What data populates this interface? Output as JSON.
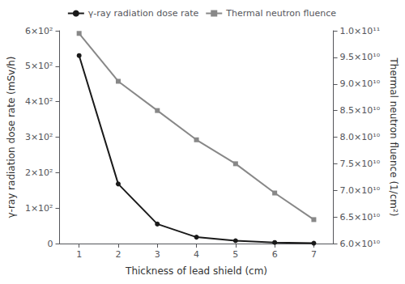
{
  "chart_data": {
    "type": "line",
    "xlabel": "Thickness of lead shield (cm)",
    "ylabel": "γ-ray radiation dose rate (mSv/h)",
    "y2label": "Thermal neutron fluence (1/cm²)",
    "x": [
      1,
      2,
      3,
      4,
      5,
      6,
      7
    ],
    "xlim": [
      0.5,
      7.5
    ],
    "xticks": [
      1,
      2,
      3,
      4,
      5,
      6,
      7
    ],
    "ylim": [
      0,
      600
    ],
    "yticks": [
      0,
      {
        "value": 100,
        "label": "1×10²"
      },
      {
        "value": 200,
        "label": "2×10²"
      },
      {
        "value": 300,
        "label": "3×10²"
      },
      {
        "value": 400,
        "label": "4×10²"
      },
      {
        "value": 500,
        "label": "5×10²"
      },
      {
        "value": 600,
        "label": "6×10²"
      }
    ],
    "y2lim": [
      60000000000.0,
      100000000000.0
    ],
    "y2ticks": [
      {
        "value": 60000000000.0,
        "label": "6.0×10¹⁰"
      },
      {
        "value": 65000000000.0,
        "label": "6.5×10¹⁰"
      },
      {
        "value": 70000000000.0,
        "label": "7.0×10¹⁰"
      },
      {
        "value": 75000000000.0,
        "label": "7.5×10¹⁰"
      },
      {
        "value": 80000000000.0,
        "label": "8.0×10¹⁰"
      },
      {
        "value": 85000000000.0,
        "label": "8.5×10¹⁰"
      },
      {
        "value": 90000000000.0,
        "label": "9.0×10¹⁰"
      },
      {
        "value": 95000000000.0,
        "label": "9.5×10¹⁰"
      },
      {
        "value": 100000000000.0,
        "label": "1.0×10¹¹"
      }
    ],
    "grid": false,
    "legend": "upper right",
    "series": [
      {
        "name": "γ-ray radiation dose rate",
        "color": "#1a1a1a",
        "marker": "circle",
        "values": [
          530,
          168,
          55,
          18,
          8,
          3,
          1
        ]
      },
      {
        "name": "Thermal neutron fluence",
        "color": "#888888",
        "marker": "square",
        "axis": "y2",
        "values": [
          99500000000.0,
          90500000000.0,
          85000000000.0,
          79500000000.0,
          75000000000.0,
          69500000000.0,
          64500000000.0
        ]
      }
    ]
  }
}
